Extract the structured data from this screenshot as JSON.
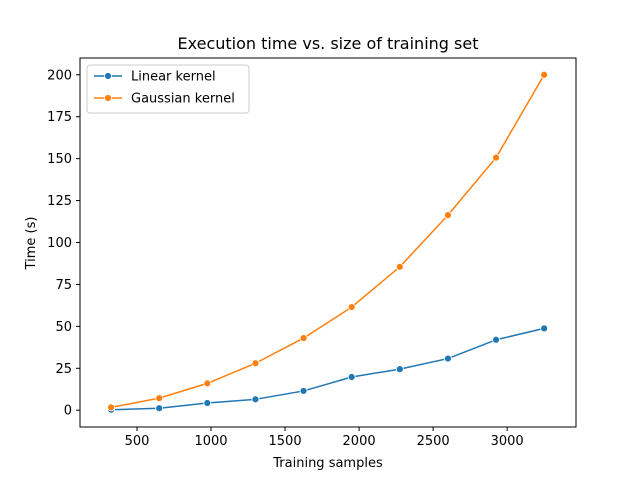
{
  "chart_data": {
    "type": "line",
    "title": "Execution time vs. size of training set",
    "xlabel": "Training samples",
    "ylabel": "Time (s)",
    "xlim": [
      115,
      3465
    ],
    "ylim": [
      -10,
      210
    ],
    "xticks": [
      500,
      1000,
      1500,
      2000,
      2500,
      3000
    ],
    "yticks": [
      0,
      25,
      50,
      75,
      100,
      125,
      150,
      175,
      200
    ],
    "x": [
      325,
      650,
      975,
      1300,
      1625,
      1950,
      2275,
      2600,
      2925,
      3250
    ],
    "series": [
      {
        "name": "Linear kernel",
        "color": "#1f77b4",
        "values": [
          0.3,
          1.2,
          4.3,
          6.5,
          11.5,
          19.8,
          24.5,
          30.8,
          42.0,
          48.8
        ]
      },
      {
        "name": "Gaussian kernel",
        "color": "#ff7f0e",
        "values": [
          1.7,
          7.2,
          16.0,
          28.0,
          43.0,
          61.5,
          85.5,
          116.3,
          150.6,
          200.0
        ]
      }
    ],
    "legend_position": "top-left",
    "grid": false
  }
}
